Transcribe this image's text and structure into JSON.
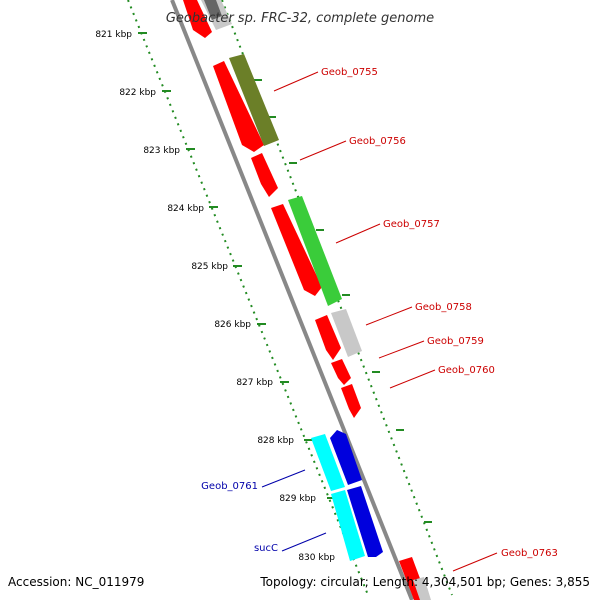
{
  "map": {
    "title": "Geobacter sp. FRC-32, complete genome",
    "accession": "Accession: NC_011979",
    "summary": "Topology: circular; Length: 4,304,501 bp; Genes: 3,855"
  },
  "ticks": [
    {
      "label": "821 kbp"
    },
    {
      "label": "822 kbp"
    },
    {
      "label": "823 kbp"
    },
    {
      "label": "824 kbp"
    },
    {
      "label": "825 kbp"
    },
    {
      "label": "826 kbp"
    },
    {
      "label": "827 kbp"
    },
    {
      "label": "828 kbp"
    },
    {
      "label": "829 kbp"
    },
    {
      "label": "830 kbp"
    }
  ],
  "gene_labels": [
    {
      "name": "Geob_0755",
      "color": "#cc0000"
    },
    {
      "name": "Geob_0756",
      "color": "#cc0000"
    },
    {
      "name": "Geob_0757",
      "color": "#cc0000"
    },
    {
      "name": "Geob_0758",
      "color": "#cc0000"
    },
    {
      "name": "Geob_0759",
      "color": "#cc0000"
    },
    {
      "name": "Geob_0760",
      "color": "#cc0000"
    },
    {
      "name": "Geob_0761",
      "color": "#0000aa"
    },
    {
      "name": "sucC",
      "color": "#0000aa"
    },
    {
      "name": "Geob_0763",
      "color": "#cc0000"
    }
  ],
  "colors": {
    "red": "#ff0000",
    "olive": "#6b7f28",
    "green": "#3acc3a",
    "grey": "#c8c8c8",
    "blue": "#0000dd",
    "cyan": "#00ffff",
    "backbone": "#888888",
    "ruler": "#228b22"
  }
}
